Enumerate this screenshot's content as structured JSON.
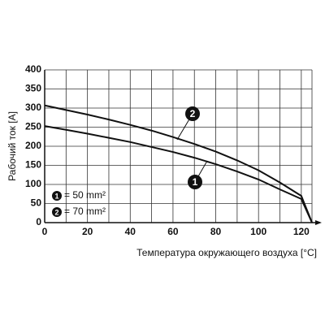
{
  "chart_data": {
    "type": "line",
    "x_label": "Температура окружающего воздуха [°C]",
    "y_label": "Рабочий ток [A]",
    "x": [
      0,
      10,
      20,
      30,
      40,
      50,
      60,
      70,
      80,
      90,
      100,
      110,
      120,
      125
    ],
    "series": [
      {
        "name": "1",
        "label": "= 50 mm²",
        "color": "#111111",
        "values": [
          253,
          243,
          233,
          222,
          211,
          198,
          185,
          170,
          153,
          134,
          113,
          87,
          62,
          0
        ]
      },
      {
        "name": "2",
        "label": "= 70 mm²",
        "color": "#111111",
        "values": [
          307,
          295,
          283,
          270,
          256,
          241,
          224,
          206,
          186,
          163,
          137,
          105,
          70,
          0
        ]
      }
    ],
    "xlim": [
      0,
      125
    ],
    "ylim": [
      0,
      400
    ],
    "xticks": [
      0,
      20,
      40,
      60,
      80,
      100,
      120
    ],
    "x_minor_ticks": [
      10,
      30,
      50,
      70,
      90,
      110
    ],
    "yticks": [
      0,
      50,
      100,
      150,
      200,
      250,
      300,
      350,
      400
    ],
    "grid": true
  }
}
